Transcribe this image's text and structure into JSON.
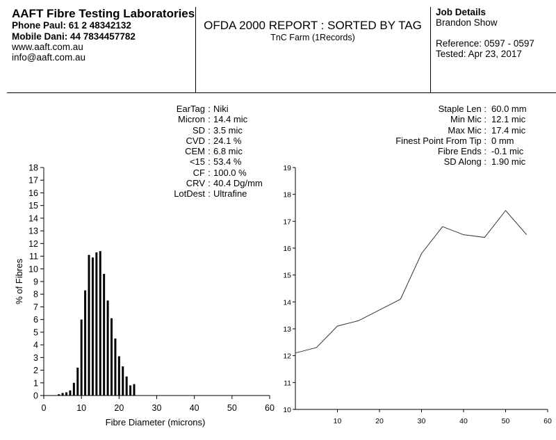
{
  "header": {
    "lab_name": "AAFT Fibre Testing Laboratories",
    "phone_line": "Phone  Paul: 61 2 48342132",
    "mobile_line": "Mobile  Dani: 44 7834457782",
    "website": "www.aaft.com.au",
    "email": "info@aaft.com.au",
    "report_title": "OFDA 2000 REPORT : SORTED BY TAG",
    "report_subtitle": "TnC Farm (1Records)",
    "job_heading": "Job Details",
    "job_client": "Brandon Show",
    "job_reference": "Reference: 0597 - 0597",
    "job_tested": "Tested: Apr 23, 2017"
  },
  "stats_left": [
    {
      "label": "EarTag",
      "value": "Niki"
    },
    {
      "label": "Micron",
      "value": "  14.4 mic"
    },
    {
      "label": "SD",
      "value": "   3.5 mic"
    },
    {
      "label": "CVD",
      "value": "24.1 %"
    },
    {
      "label": "CEM",
      "value": "   6.8 mic"
    },
    {
      "label": "<15",
      "value": "  53.4 %"
    },
    {
      "label": "CF",
      "value": "100.0 %"
    },
    {
      "label": "CRV",
      "value": "  40.4 Dg/mm"
    },
    {
      "label": "LotDest",
      "value": "Ultrafine"
    }
  ],
  "stats_right": [
    {
      "label": "Staple Len :",
      "value": "60.0 mm"
    },
    {
      "label": "Min Mic :",
      "value": "12.1 mic"
    },
    {
      "label": "Max Mic :",
      "value": "17.4 mic"
    },
    {
      "label": "Finest Point From Tip :",
      "value": "0 mm"
    },
    {
      "label": "Fibre Ends :",
      "value": "-0.1 mic"
    },
    {
      "label": "SD Along :",
      "value": "1.90 mic"
    }
  ],
  "chart_data": [
    {
      "type": "bar",
      "xlabel": "Fibre Diameter (microns)",
      "ylabel": "% of Fibres",
      "xlim": [
        0,
        60
      ],
      "ylim": [
        0,
        18
      ],
      "x_ticks": [
        "0",
        "10",
        "20",
        "30",
        "40",
        "50",
        "60"
      ],
      "y_ticks": [
        "0",
        "1",
        "2",
        "3",
        "4",
        "5",
        "6",
        "7",
        "8",
        "9",
        "10",
        "11",
        "12",
        "13",
        "14",
        "15",
        "16",
        "17",
        "18"
      ],
      "x": [
        4,
        5,
        6,
        7,
        8,
        9,
        10,
        11,
        12,
        13,
        14,
        15,
        16,
        17,
        18,
        19,
        20,
        21,
        22,
        23,
        24
      ],
      "values": [
        0.1,
        0.2,
        0.25,
        0.4,
        1.0,
        2.2,
        6.0,
        8.3,
        11.1,
        10.9,
        11.3,
        11.4,
        9.6,
        7.5,
        6.1,
        4.5,
        3.1,
        2.3,
        1.5,
        0.8,
        0.9
      ]
    },
    {
      "type": "line",
      "xlim": [
        0,
        60
      ],
      "ylim": [
        10,
        19
      ],
      "x_ticks": [
        "10",
        "20",
        "30",
        "40",
        "50",
        "60"
      ],
      "y_ticks": [
        "10",
        "11",
        "12",
        "13",
        "14",
        "15",
        "16",
        "17",
        "18",
        "19"
      ],
      "x": [
        0,
        5,
        10,
        15,
        20,
        25,
        30,
        35,
        40,
        45,
        50,
        55
      ],
      "y": [
        12.1,
        12.3,
        13.1,
        13.3,
        13.7,
        14.1,
        15.8,
        16.8,
        16.5,
        16.4,
        17.4,
        16.5
      ]
    }
  ]
}
